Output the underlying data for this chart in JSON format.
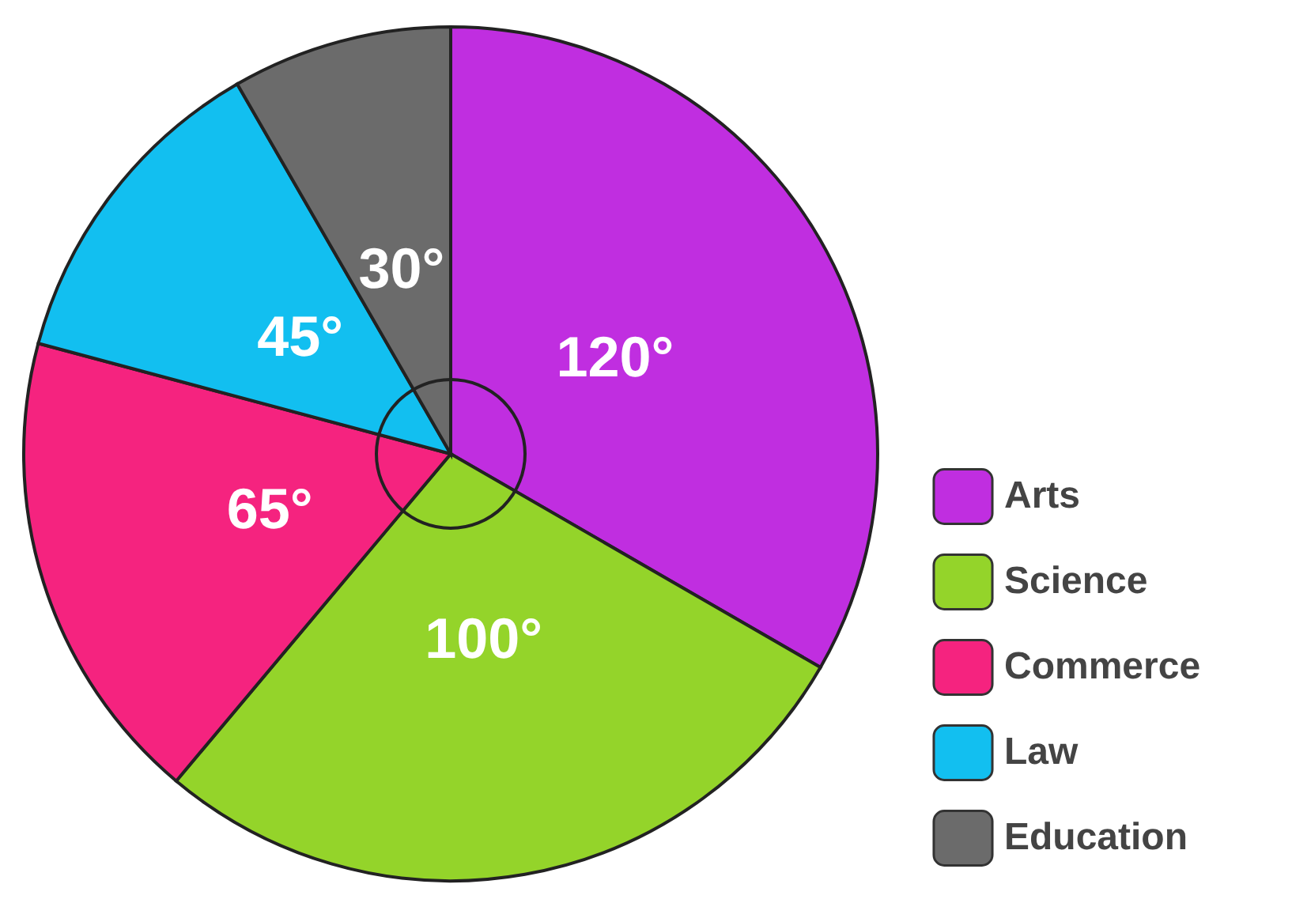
{
  "chart_data": {
    "type": "pie",
    "categories": [
      "Arts",
      "Science",
      "Commerce",
      "Law",
      "Education"
    ],
    "values": [
      120,
      100,
      65,
      45,
      30
    ],
    "value_labels": [
      "120°",
      "100°",
      "65°",
      "45°",
      "30°"
    ],
    "colors": [
      "#c02ee0",
      "#94d42a",
      "#f5237f",
      "#12bff0",
      "#6b6b6b"
    ],
    "legend": "right"
  }
}
